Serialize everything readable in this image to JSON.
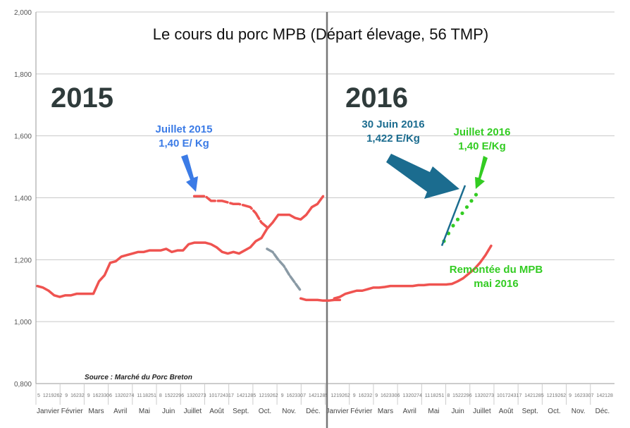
{
  "chart_data": {
    "type": "line",
    "title": "Le cours du porc  MPB (Départ élevage, 56 TMP)",
    "year_labels": [
      "2015",
      "2016"
    ],
    "source": "Source : Marché du Porc Breton",
    "ylim": [
      0.8,
      2.0
    ],
    "y_ticks": [
      "0,800",
      "1,000",
      "1,200",
      "1,400",
      "1,600",
      "1,800",
      "2,000"
    ],
    "y_tick_values": [
      0.8,
      1.0,
      1.2,
      1.4,
      1.6,
      1.8,
      2.0
    ],
    "grid": true,
    "months": [
      "Janvier",
      "Février",
      "Mars",
      "Avril",
      "Mai",
      "Juin",
      "Juillet",
      "Août",
      "Sept.",
      "Oct.",
      "Nov.",
      "Déc.",
      "Janvier",
      "Février",
      "Mars",
      "Avril",
      "Mai",
      "Juin",
      "Juillet",
      "Août",
      "Sept.",
      "Oct.",
      "Nov.",
      "Déc."
    ],
    "week_labels": [
      "5",
      "12",
      "19",
      "26",
      "2",
      "9",
      "16",
      "23",
      "2",
      "9",
      "16",
      "23",
      "30",
      "6",
      "13",
      "20",
      "27",
      "4",
      "11",
      "18",
      "25",
      "1",
      "8",
      "15",
      "22",
      "29",
      "6",
      "13",
      "20",
      "27",
      "3",
      "10",
      "17",
      "24",
      "31",
      "7",
      "14",
      "21",
      "28",
      "5",
      "12",
      "19",
      "26",
      "2",
      "9",
      "16",
      "23",
      "30",
      "7",
      "14",
      "21",
      "28"
    ],
    "series": [
      {
        "color": "#ef5350",
        "values_2015_weekly": [
          1.115,
          1.11,
          1.1,
          1.085,
          1.08,
          1.085,
          1.085,
          1.09,
          1.09,
          1.09,
          1.09,
          1.13,
          1.15,
          1.19,
          1.195,
          1.21,
          1.215,
          1.22,
          1.225,
          1.225,
          1.23,
          1.23,
          1.23,
          1.235,
          1.225,
          1.23,
          1.23,
          1.25,
          1.255,
          1.255,
          1.255,
          1.25,
          1.24,
          1.225,
          1.22,
          1.225,
          1.22,
          1.23,
          1.24,
          1.26,
          1.27,
          1.3,
          1.32,
          1.345,
          1.345,
          1.345,
          1.335,
          1.33,
          1.345,
          1.37,
          1.38,
          1.405
        ],
        "values_2015_autumn": [
          1.405,
          1.405,
          1.405,
          1.39,
          1.39,
          1.39,
          1.385,
          1.38,
          1.38,
          1.375,
          1.37,
          1.35,
          1.32,
          1.305
        ],
        "values_2015_dec": [
          1.075,
          1.07,
          1.07,
          1.07,
          1.068,
          1.068,
          1.07,
          1.07
        ],
        "values_2016_weekly": [
          1.075,
          1.08,
          1.09,
          1.095,
          1.1,
          1.1,
          1.105,
          1.11,
          1.11,
          1.112,
          1.115,
          1.115,
          1.115,
          1.115,
          1.115,
          1.118,
          1.118,
          1.12,
          1.12,
          1.12,
          1.12,
          1.122,
          1.13,
          1.14,
          1.155,
          1.17,
          1.19,
          1.215,
          1.245
        ]
      },
      {
        "color": "#8a9aa5",
        "values_2015_decline": [
          1.235,
          1.225,
          1.2,
          1.18,
          1.15,
          1.125,
          1.1
        ]
      }
    ],
    "annotations": [
      {
        "text_lines": [
          "Juillet 2015",
          "1,40 E/ Kg"
        ],
        "color": "#3b7be6"
      },
      {
        "text_lines": [
          "30 Juin 2016",
          "1,422 E/Kg"
        ],
        "color": "#1b6c8f"
      },
      {
        "text_lines": [
          "Juillet 2016",
          "1,40 E/Kg"
        ],
        "color": "#33cc22"
      },
      {
        "text_lines": [
          "Remontée du MPB",
          "mai 2016"
        ],
        "color": "#33cc22"
      }
    ],
    "forecast_dots": [
      1.26,
      1.285,
      1.31,
      1.33,
      1.35,
      1.37,
      1.39,
      1.41
    ]
  }
}
